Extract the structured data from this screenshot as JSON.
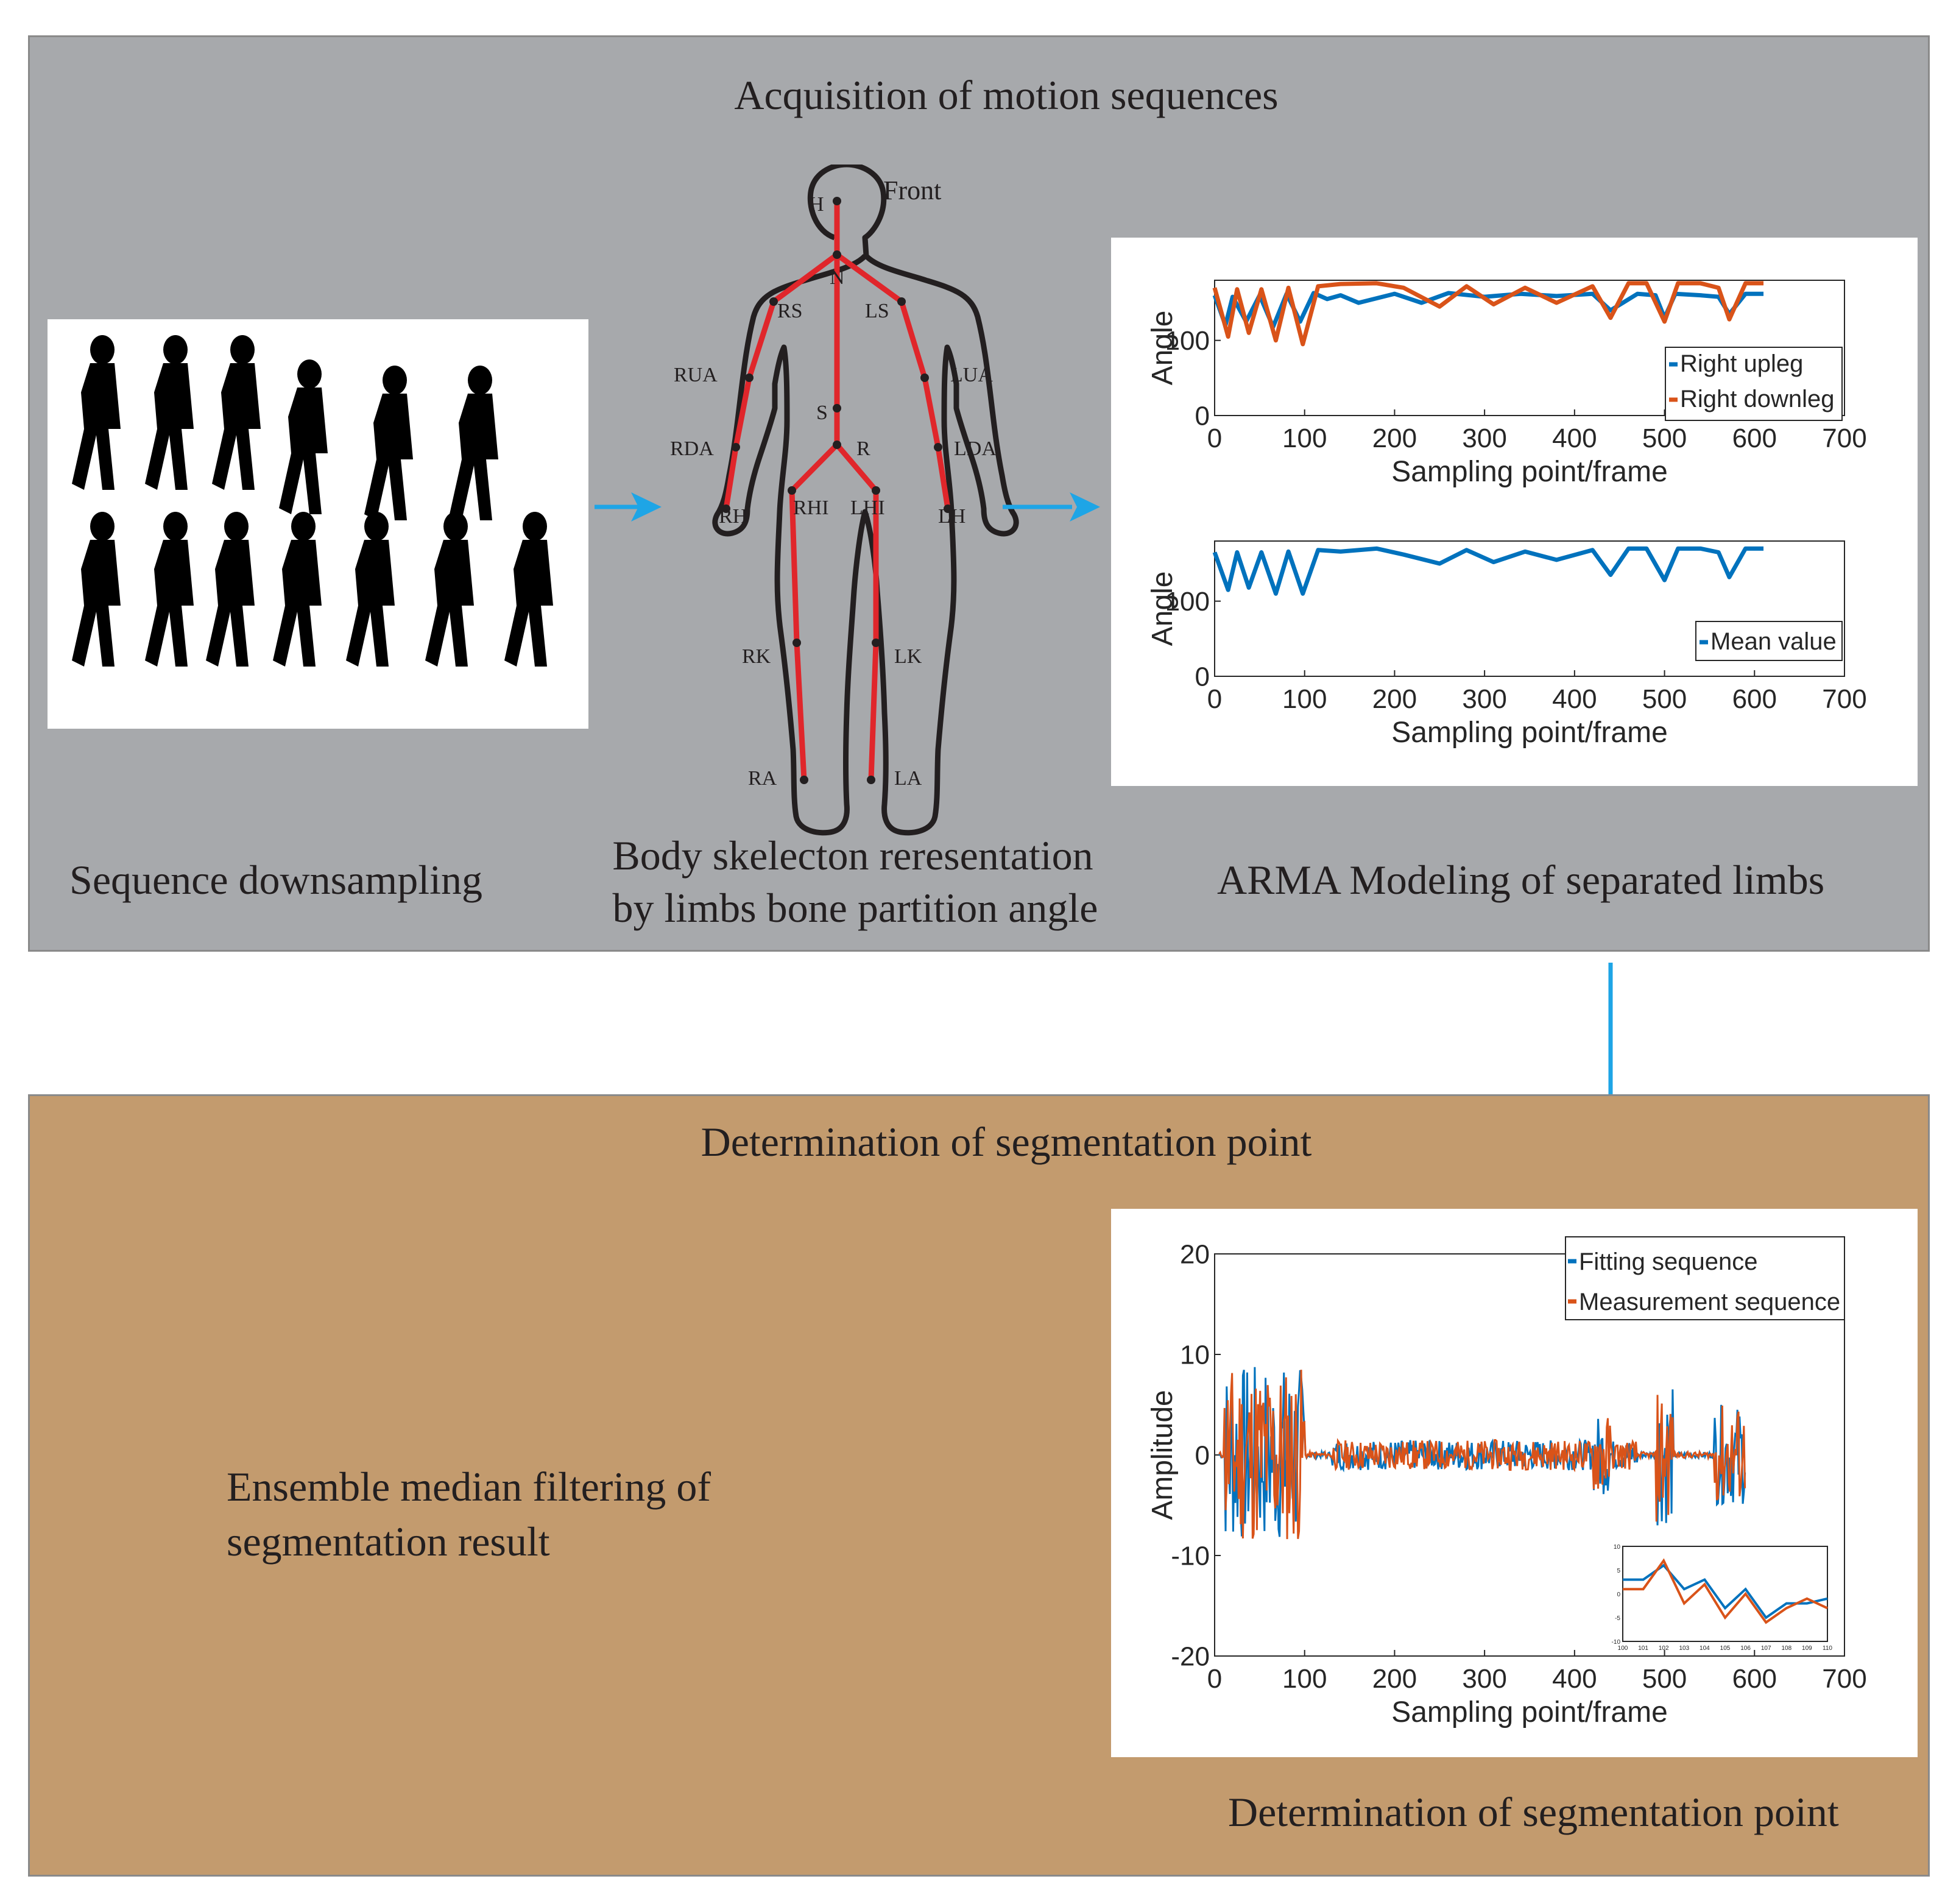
{
  "colors": {
    "top_panel": "#a7a9ac",
    "bottom_panel": "#c39b6e",
    "arrow": "#1ea5e6",
    "skeleton": "#e0262b",
    "blue_series": "#0072bd",
    "orange_series": "#d95319"
  },
  "top": {
    "title": "Acquisition of motion sequences",
    "downsampling_caption": "Sequence downsampling",
    "skeleton_caption_line1": "Body skelecton reresentation",
    "skeleton_caption_line2": "by limbs bone partition angle",
    "arma_caption": "ARMA Modeling of separated limbs"
  },
  "skeleton": {
    "front_label": "Front",
    "joints": {
      "H": "H",
      "N": "N",
      "RS": "RS",
      "LS": "LS",
      "RUA": "RUA",
      "LUA": "LUA",
      "S": "S",
      "RDA": "RDA",
      "R": "R",
      "LDA": "LDA",
      "RH": "RH",
      "RHI": "RHI",
      "LHI": "LHI",
      "LH": "LH",
      "RK": "RK",
      "LK": "LK",
      "RA": "RA",
      "LA": "LA"
    }
  },
  "bottom": {
    "title": "Determination of segmentation point",
    "filter_caption_line1": "Ensemble median filtering of",
    "filter_caption_line2": "segmentation result",
    "chart_caption": "Determination of segmentation point"
  },
  "chart_data": [
    {
      "type": "line",
      "ylabel": "Angle",
      "xlabel": "Sampling point/frame",
      "xlim": [
        0,
        700
      ],
      "ylim": [
        0,
        180
      ],
      "xticks": [
        "0",
        "100",
        "200",
        "300",
        "400",
        "500",
        "600",
        "700"
      ],
      "yticks": [
        "0",
        "100"
      ],
      "legend_position": "bottom-right",
      "series": [
        {
          "name": "Right upleg",
          "x": [
            0,
            12,
            20,
            35,
            50,
            65,
            80,
            95,
            110,
            125,
            140,
            160,
            200,
            230,
            260,
            300,
            340,
            380,
            420,
            440,
            470,
            490,
            500,
            512,
            540,
            560,
            572,
            590,
            610
          ],
          "values": [
            160,
            120,
            158,
            125,
            160,
            118,
            162,
            125,
            163,
            155,
            160,
            150,
            162,
            150,
            163,
            158,
            162,
            159,
            162,
            140,
            162,
            160,
            130,
            162,
            160,
            158,
            135,
            162,
            162
          ]
        },
        {
          "name": "Right downleg",
          "x": [
            0,
            15,
            25,
            38,
            52,
            68,
            82,
            98,
            115,
            140,
            180,
            210,
            250,
            280,
            310,
            345,
            380,
            420,
            440,
            460,
            480,
            500,
            515,
            540,
            560,
            572,
            590,
            610
          ],
          "values": [
            170,
            105,
            168,
            110,
            168,
            100,
            170,
            95,
            172,
            175,
            176,
            170,
            145,
            172,
            148,
            170,
            150,
            172,
            130,
            176,
            176,
            125,
            176,
            176,
            170,
            128,
            176,
            176
          ]
        }
      ]
    },
    {
      "type": "line",
      "ylabel": "Angle",
      "xlabel": "Sampling point/frame",
      "xlim": [
        0,
        700
      ],
      "ylim": [
        0,
        180
      ],
      "xticks": [
        "0",
        "100",
        "200",
        "300",
        "400",
        "500",
        "600",
        "700"
      ],
      "yticks": [
        "0",
        "100"
      ],
      "legend_position": "bottom-right",
      "series": [
        {
          "name": "Mean value",
          "x": [
            0,
            15,
            25,
            38,
            52,
            68,
            82,
            98,
            115,
            140,
            180,
            210,
            250,
            280,
            310,
            345,
            380,
            420,
            440,
            460,
            480,
            500,
            515,
            540,
            560,
            572,
            590,
            610
          ],
          "values": [
            165,
            115,
            165,
            118,
            165,
            110,
            166,
            110,
            168,
            166,
            170,
            162,
            150,
            168,
            152,
            166,
            155,
            168,
            135,
            170,
            170,
            128,
            170,
            170,
            165,
            132,
            170,
            170
          ]
        }
      ]
    },
    {
      "type": "line",
      "ylabel": "Amplitude",
      "xlabel": "Sampling point/frame",
      "xlim": [
        0,
        700
      ],
      "ylim": [
        -20,
        20
      ],
      "xticks": [
        "0",
        "100",
        "200",
        "300",
        "400",
        "500",
        "600",
        "700"
      ],
      "yticks": [
        "-20",
        "-10",
        "0",
        "10",
        "20"
      ],
      "legend_position": "top-right",
      "series": [
        {
          "name": "Fitting sequence"
        },
        {
          "name": "Measurement sequence"
        }
      ],
      "inset": {
        "xlim": [
          100,
          110
        ],
        "ylim": [
          -10,
          10
        ],
        "xticks": [
          "100",
          "101",
          "102",
          "103",
          "104",
          "105",
          "106",
          "107",
          "108",
          "109",
          "110"
        ],
        "yticks": [
          "-10",
          "-5",
          "0",
          "5",
          "10"
        ],
        "series": [
          {
            "name": "Fitting sequence",
            "x": [
              100,
              101,
              102,
              103,
              104,
              105,
              106,
              107,
              108,
              109,
              110
            ],
            "values": [
              3,
              3,
              6,
              1,
              3,
              -3,
              1,
              -5,
              -2,
              -2,
              -1
            ]
          },
          {
            "name": "Measurement sequence",
            "x": [
              100,
              101,
              102,
              103,
              104,
              105,
              106,
              107,
              108,
              109,
              110
            ],
            "values": [
              1,
              1,
              7,
              -2,
              2,
              -5,
              0,
              -6,
              -3,
              -1,
              -3
            ]
          }
        ]
      }
    }
  ]
}
